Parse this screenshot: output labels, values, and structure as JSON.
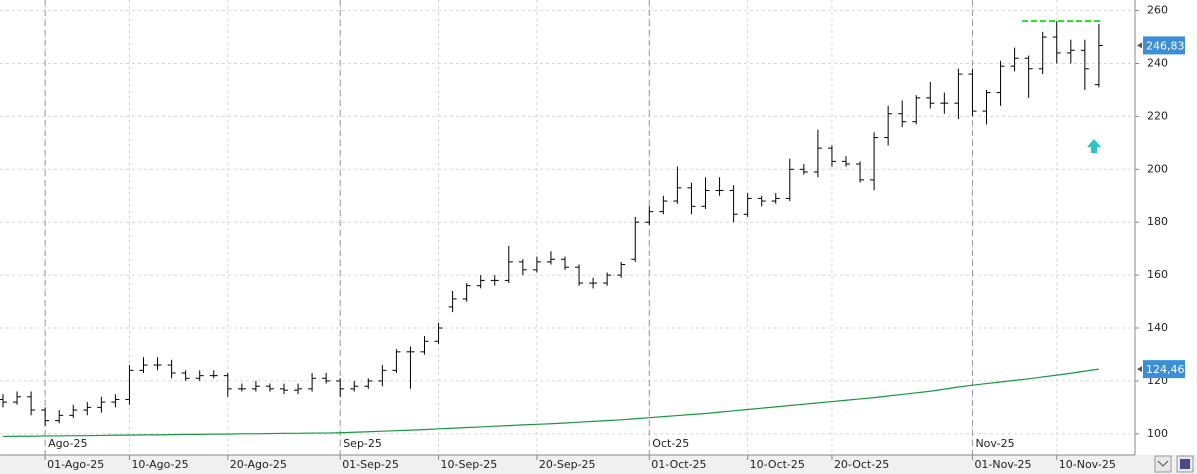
{
  "chart_data": {
    "type": "ohlc",
    "ylim": [
      92,
      264
    ],
    "yticks": [
      100,
      120,
      140,
      160,
      180,
      200,
      220,
      240,
      260
    ],
    "categories": [
      null,
      null,
      null,
      "01-Ago-25",
      null,
      null,
      null,
      null,
      null,
      "10-Ago-25",
      null,
      null,
      null,
      null,
      null,
      null,
      "20-Ago-25",
      null,
      null,
      null,
      null,
      null,
      null,
      null,
      "01-Sep-25",
      null,
      null,
      null,
      null,
      null,
      null,
      "10-Sep-25",
      null,
      null,
      null,
      null,
      null,
      null,
      "20-Sep-25",
      null,
      null,
      null,
      null,
      null,
      null,
      null,
      "01-Oct-25",
      null,
      null,
      null,
      null,
      null,
      null,
      "10-Oct-25",
      null,
      null,
      null,
      null,
      null,
      "20-Oct-25",
      null,
      null,
      null,
      null,
      null,
      null,
      null,
      null,
      null,
      "01-Nov-25",
      null,
      null,
      null,
      null,
      null,
      "10-Nov-25",
      null,
      null,
      null
    ],
    "month_labels": [
      null,
      null,
      null,
      "Ago-25",
      null,
      null,
      null,
      null,
      null,
      null,
      null,
      null,
      null,
      null,
      null,
      null,
      null,
      null,
      null,
      null,
      null,
      null,
      null,
      null,
      "Sep-25",
      null,
      null,
      null,
      null,
      null,
      null,
      null,
      null,
      null,
      null,
      null,
      null,
      null,
      null,
      null,
      null,
      null,
      null,
      null,
      null,
      null,
      "Oct-25",
      null,
      null,
      null,
      null,
      null,
      null,
      null,
      null,
      null,
      null,
      null,
      null,
      null,
      null,
      null,
      null,
      null,
      null,
      null,
      null,
      null,
      null,
      "Nov-25",
      null,
      null,
      null,
      null,
      null,
      null,
      null,
      null,
      null
    ],
    "open": [
      113,
      112,
      114,
      109,
      105,
      107,
      109,
      110,
      112,
      113,
      124,
      126,
      126,
      123,
      121,
      122,
      122,
      117,
      117,
      118,
      117,
      116.5,
      117,
      121,
      120,
      117,
      118,
      120,
      124,
      131,
      131,
      135,
      148,
      151,
      156,
      158,
      158,
      165,
      162,
      165,
      166,
      163,
      157,
      157,
      160,
      166,
      180,
      184,
      188,
      193,
      186,
      192,
      192,
      183,
      189,
      188,
      189,
      200,
      199,
      208,
      203,
      202,
      196,
      212,
      221,
      218,
      227,
      225,
      225,
      236,
      222,
      229,
      239,
      242,
      238,
      250,
      244,
      245,
      232
    ],
    "high": [
      115,
      116,
      116,
      110,
      109,
      111,
      112,
      114,
      115,
      126,
      129,
      129,
      128,
      124,
      124,
      124,
      123,
      119,
      120,
      119,
      119,
      119,
      123,
      123,
      121,
      120,
      121,
      126,
      132,
      133,
      137,
      142,
      154,
      157,
      160,
      160,
      171,
      166,
      167,
      169,
      167,
      164,
      159,
      161,
      165,
      182,
      186,
      190,
      201,
      195,
      197,
      197,
      194,
      191,
      190,
      191,
      204,
      202,
      215,
      209,
      205,
      203,
      214,
      224,
      226,
      228,
      233,
      229,
      238,
      238,
      230,
      241,
      246,
      243,
      252,
      256,
      249,
      249,
      255
    ],
    "low": [
      110,
      111,
      107,
      103,
      104,
      106,
      107,
      108,
      110,
      111,
      123,
      124,
      121,
      120,
      120,
      121,
      114,
      116,
      116,
      116,
      115,
      115,
      116,
      119,
      114,
      116,
      117,
      118,
      123,
      117,
      130,
      134,
      146,
      150,
      155,
      156,
      157,
      160,
      161,
      164,
      162,
      156,
      155,
      156,
      159,
      165,
      179,
      183,
      187,
      183,
      185,
      190,
      180,
      182,
      186,
      187,
      188,
      198,
      197,
      201,
      201,
      195,
      192,
      209,
      216,
      217,
      223,
      221,
      219,
      220,
      217,
      224,
      237,
      227,
      236,
      240,
      240,
      230,
      231
    ],
    "close": [
      112,
      114,
      109,
      105,
      107,
      109,
      110,
      112,
      113,
      124,
      126,
      126,
      123,
      121,
      122,
      122,
      117,
      117,
      118,
      117,
      116.5,
      117,
      121,
      120,
      117,
      118,
      120,
      124,
      131,
      131,
      135,
      140,
      151,
      156,
      158,
      158,
      165,
      162,
      165,
      166,
      163,
      157,
      157,
      160,
      164,
      180,
      184,
      188,
      193,
      186,
      192,
      192,
      183,
      189,
      188,
      189,
      200,
      199,
      208,
      203,
      202,
      196,
      212,
      221,
      218,
      227,
      225,
      225,
      236,
      222,
      229,
      239,
      242,
      238,
      250,
      244,
      245,
      238,
      246.83
    ],
    "moving_average": [
      99.0,
      99.1,
      99.1,
      99.2,
      99.2,
      99.3,
      99.3,
      99.4,
      99.5,
      99.5,
      99.6,
      99.6,
      99.7,
      99.8,
      99.8,
      99.9,
      99.9,
      100.0,
      100.0,
      100.1,
      100.2,
      100.2,
      100.3,
      100.3,
      100.4,
      100.6,
      100.8,
      101.0,
      101.2,
      101.4,
      101.6,
      101.9,
      102.1,
      102.4,
      102.6,
      102.9,
      103.1,
      103.4,
      103.6,
      103.8,
      104.1,
      104.4,
      104.7,
      105.0,
      105.3,
      105.7,
      106.1,
      106.5,
      106.9,
      107.3,
      107.7,
      108.2,
      108.7,
      109.2,
      109.7,
      110.2,
      110.7,
      111.2,
      111.7,
      112.2,
      112.7,
      113.2,
      113.7,
      114.3,
      114.9,
      115.5,
      116.1,
      116.9,
      117.7,
      118.4,
      119.0,
      119.6,
      120.2,
      120.8,
      121.5,
      122.2,
      122.9,
      123.7,
      124.46
    ],
    "last_price": {
      "value": 246.83,
      "label": "246,83"
    },
    "last_average": {
      "value": 124.46,
      "label": "124,46"
    },
    "resistance": 256,
    "bar_color": "#000000",
    "average_color": "#1a9641",
    "resistance_color": "#22dd22",
    "grid": true
  }
}
